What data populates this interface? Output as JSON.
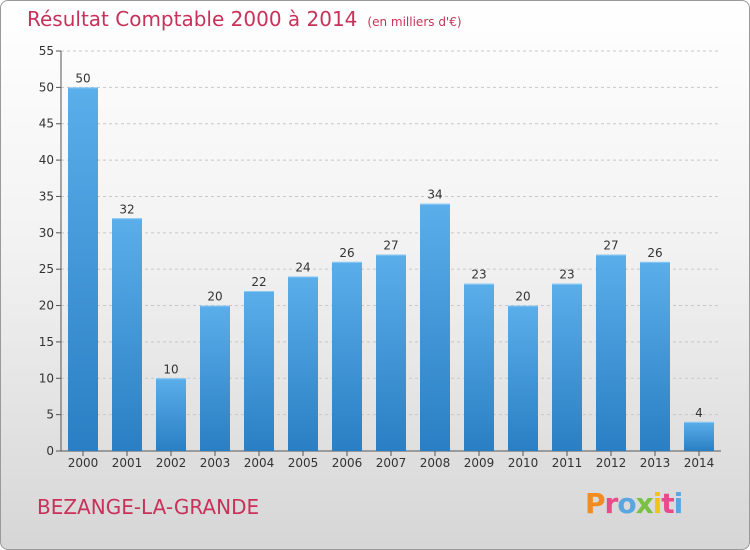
{
  "chart_data": {
    "type": "bar",
    "title": "Résultat Comptable 2000 à 2014",
    "subtitle": "(en milliers d'€)",
    "categories": [
      "2000",
      "2001",
      "2002",
      "2003",
      "2004",
      "2005",
      "2006",
      "2007",
      "2008",
      "2009",
      "2010",
      "2011",
      "2012",
      "2013",
      "2014"
    ],
    "values": [
      50,
      32,
      10,
      20,
      22,
      24,
      26,
      27,
      34,
      23,
      20,
      23,
      27,
      26,
      4
    ],
    "ylim": [
      0,
      55
    ],
    "yticks": [
      0,
      5,
      10,
      15,
      20,
      25,
      30,
      35,
      40,
      45,
      50,
      55
    ],
    "grid": true,
    "bar_color": "#4a9fe0",
    "bar_color_dark": "#2a7fc4"
  },
  "footer": {
    "place_name": "BEZANGE-LA-GRANDE",
    "logo_text": "Proxiti",
    "logo_colors": [
      "#f28c1e",
      "#e94b8a",
      "#5aa6e0",
      "#7ac143",
      "#f0c419",
      "#e94b8a",
      "#5aa6e0"
    ]
  },
  "colors": {
    "title": "#c8325a"
  }
}
